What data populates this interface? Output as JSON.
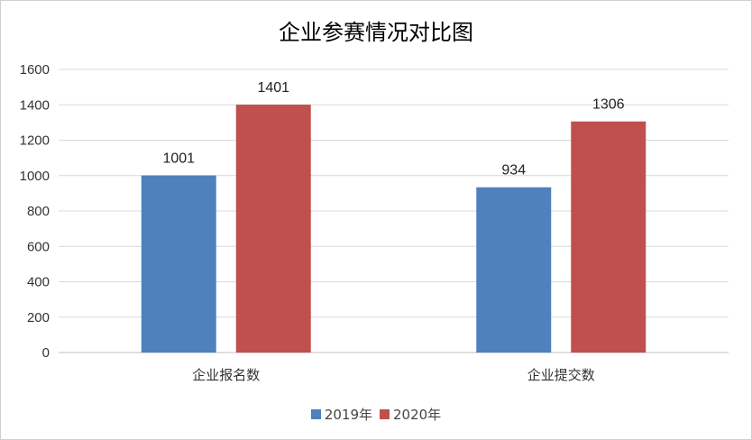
{
  "chart_data": {
    "type": "bar",
    "title": "企业参赛情况对比图",
    "categories": [
      "企业报名数",
      "企业提交数"
    ],
    "series": [
      {
        "name": "2019年",
        "values": [
          1001,
          934
        ],
        "color": "#4f81bd"
      },
      {
        "name": "2020年",
        "values": [
          1401,
          1306
        ],
        "color": "#c0504d"
      }
    ],
    "ylim": [
      0,
      1600
    ],
    "yticks": [
      0,
      200,
      400,
      600,
      800,
      1000,
      1200,
      1400,
      1600
    ],
    "grid": true,
    "legend": "bottom",
    "xlabel": "",
    "ylabel": ""
  }
}
